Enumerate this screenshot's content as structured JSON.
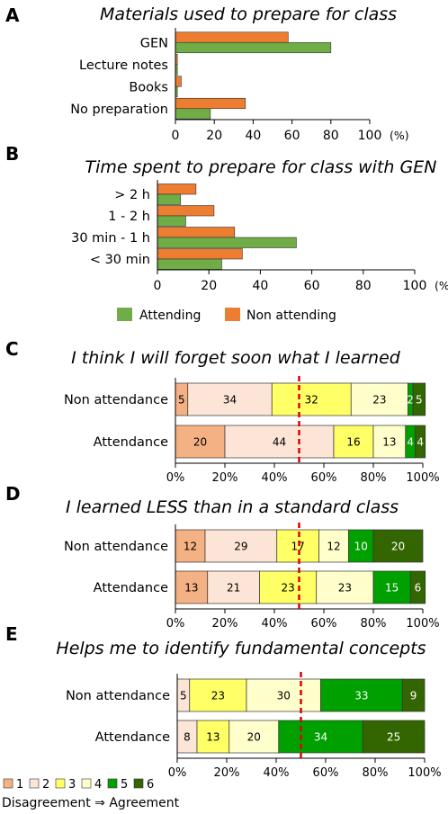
{
  "colors": {
    "attending": "#70ad47",
    "non_attending": "#ed7d31",
    "likert": [
      "#f4b183",
      "#fce4d6",
      "#ffff66",
      "#ffffcc",
      "#00a000",
      "#336600"
    ],
    "median_line": "#e00000",
    "grid": "#bfbfbf"
  },
  "chart_data": [
    {
      "panel": "A",
      "type": "bar",
      "orientation": "horizontal",
      "title": "Materials used to prepare for class",
      "categories": [
        "GEN",
        "Lecture notes",
        "Books",
        "No preparation"
      ],
      "series": [
        {
          "name": "Non attending",
          "values": [
            58,
            1,
            3,
            36
          ]
        },
        {
          "name": "Attending",
          "values": [
            80,
            1,
            1,
            18
          ]
        }
      ],
      "xlim": [
        0,
        100
      ],
      "xticks": [
        "0",
        "20",
        "40",
        "60",
        "80",
        "100"
      ],
      "unit": "(%)",
      "grid": false
    },
    {
      "panel": "B",
      "type": "bar",
      "orientation": "horizontal",
      "title": "Time spent to prepare for class with GEN",
      "categories": [
        "> 2 h",
        "1 - 2 h",
        "30 min - 1 h",
        "< 30 min"
      ],
      "series": [
        {
          "name": "Non attending",
          "values": [
            15,
            22,
            30,
            33
          ]
        },
        {
          "name": "Attending",
          "values": [
            9,
            11,
            54,
            25
          ]
        }
      ],
      "xlim": [
        0,
        100
      ],
      "xticks": [
        "0",
        "20",
        "40",
        "60",
        "80",
        "100"
      ],
      "unit": "(%)",
      "grid": false,
      "legend": {
        "placement": "bottom",
        "items": [
          "Attending",
          "Non attending"
        ]
      }
    },
    {
      "panel": "C",
      "type": "bar",
      "orientation": "horizontal-stacked",
      "title": "I think I will forget soon what I learned",
      "categories": [
        "Non attendance",
        "Attendance"
      ],
      "segments": [
        {
          "values": [
            5,
            34,
            32,
            23,
            2,
            5
          ],
          "labels": [
            "5",
            "34",
            "32",
            "23",
            "2",
            "5"
          ]
        },
        {
          "values": [
            20,
            44,
            16,
            13,
            4,
            4
          ],
          "labels": [
            "20",
            "44",
            "16",
            "13",
            "4",
            "4"
          ]
        }
      ],
      "median": 50,
      "xlim": [
        0,
        100
      ],
      "xticks": [
        "0%",
        "20%",
        "40%",
        "60%",
        "80%",
        "100%"
      ]
    },
    {
      "panel": "D",
      "type": "bar",
      "orientation": "horizontal-stacked",
      "title": "I learned LESS than in a standard class",
      "categories": [
        "Non attendance",
        "Attendance"
      ],
      "segments": [
        {
          "values": [
            12,
            29,
            17,
            12,
            10,
            20
          ],
          "labels": [
            "12",
            "29",
            "17",
            "12",
            "10",
            "20"
          ]
        },
        {
          "values": [
            13,
            21,
            23,
            23,
            15,
            6
          ],
          "labels": [
            "13",
            "21",
            "23",
            "23",
            "15",
            "6"
          ]
        }
      ],
      "median": 50,
      "xlim": [
        0,
        100
      ],
      "xticks": [
        "0%",
        "20%",
        "40%",
        "60%",
        "80%",
        "100%"
      ]
    },
    {
      "panel": "E",
      "type": "bar",
      "orientation": "horizontal-stacked",
      "title": "Helps me to identify fundamental concepts",
      "categories": [
        "Non attendance",
        "Attendance"
      ],
      "segments": [
        {
          "values": [
            0,
            5,
            23,
            30,
            33,
            9
          ],
          "labels": [
            "",
            "5",
            "23",
            "30",
            "33",
            "9"
          ]
        },
        {
          "values": [
            0,
            8,
            13,
            20,
            34,
            25
          ],
          "labels": [
            "",
            "8",
            "13",
            "20",
            "34",
            "25"
          ]
        }
      ],
      "median": 50,
      "xlim": [
        0,
        100
      ],
      "xticks": [
        "0%",
        "20%",
        "40%",
        "60%",
        "80%",
        "100%"
      ]
    }
  ],
  "likert_legend": {
    "items": [
      "1",
      "2",
      "3",
      "4",
      "5",
      "6"
    ],
    "caption": "Disagreement ⇒ Agreement"
  }
}
